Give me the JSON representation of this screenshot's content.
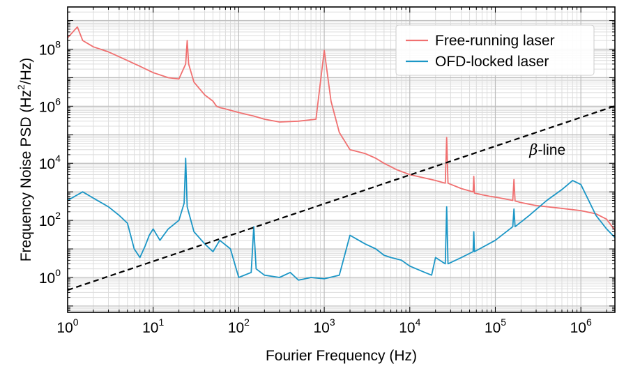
{
  "chart_data": {
    "type": "line",
    "xlabel": "Fourier Frequency (Hz)",
    "ylabel": {
      "pre": "Frequency Noise PSD (Hz",
      "sup": "2",
      "post": "/Hz)"
    },
    "xscale": "log",
    "yscale": "log",
    "xlim": [
      1,
      2500000
    ],
    "ylim": [
      0.06,
      3000000000.0
    ],
    "xticks": [
      {
        "base": "10",
        "exp": "0",
        "value": 1
      },
      {
        "base": "10",
        "exp": "1",
        "value": 10
      },
      {
        "base": "10",
        "exp": "2",
        "value": 100
      },
      {
        "base": "10",
        "exp": "3",
        "value": 1000
      },
      {
        "base": "10",
        "exp": "4",
        "value": 10000
      },
      {
        "base": "10",
        "exp": "5",
        "value": 100000
      },
      {
        "base": "10",
        "exp": "6",
        "value": 1000000
      }
    ],
    "yticks": [
      {
        "base": "10",
        "exp": "0",
        "value": 1
      },
      {
        "base": "10",
        "exp": "2",
        "value": 100
      },
      {
        "base": "10",
        "exp": "4",
        "value": 10000
      },
      {
        "base": "10",
        "exp": "6",
        "value": 1000000
      },
      {
        "base": "10",
        "exp": "8",
        "value": 100000000
      }
    ],
    "grid": true,
    "legend_position": "top-right",
    "annotations": [
      {
        "symbol": "β",
        "text": "-line",
        "x": 250000,
        "y": 20000
      }
    ],
    "series": [
      {
        "name": "Free-running laser",
        "color": "#f07070",
        "x": [
          1,
          1.3,
          1.5,
          2,
          3,
          5,
          7,
          10,
          15,
          20,
          24,
          25,
          26,
          30,
          40,
          50,
          55,
          60,
          70,
          100,
          150,
          200,
          300,
          500,
          800,
          1000,
          1200,
          1500,
          2000,
          3000,
          4000,
          5000,
          7000,
          10000,
          20000,
          26000,
          27000,
          28000,
          40000,
          55000,
          56000,
          57000,
          85000,
          100000,
          160000,
          165000,
          170000,
          200000,
          300000,
          500000,
          1000000,
          1500000,
          2000000,
          2500000
        ],
        "y": [
          250000000.0,
          600000000.0,
          200000000.0,
          120000000.0,
          80000000.0,
          40000000.0,
          25000000.0,
          15000000.0,
          10000000.0,
          9000000.0,
          30000000.0,
          200000000.0,
          30000000.0,
          7000000.0,
          2500000.0,
          1500000.0,
          1000000.0,
          900000.0,
          800000.0,
          600000.0,
          450000.0,
          350000.0,
          280000.0,
          300000.0,
          350000.0,
          90000000.0,
          1500000.0,
          120000.0,
          30000.0,
          22000.0,
          15000.0,
          10000.0,
          6000,
          4000,
          2500,
          2000,
          80000,
          2000,
          1300,
          1000,
          3500,
          900,
          700,
          650,
          500,
          2700,
          480,
          420,
          330,
          280,
          220,
          170,
          110,
          45
        ]
      },
      {
        "name": "OFD-locked laser",
        "color": "#1b96c6",
        "x": [
          1,
          1.5,
          2,
          3,
          4,
          5,
          6,
          7,
          8,
          9,
          10,
          12,
          15,
          20,
          23,
          24,
          25,
          30,
          40,
          50,
          60,
          80,
          100,
          140,
          150,
          160,
          200,
          300,
          400,
          500,
          700,
          1000,
          1500,
          2000,
          3000,
          4000,
          5000,
          6000,
          8000,
          10000,
          15000,
          18000,
          20000,
          26000,
          27000,
          28000,
          40000,
          55000,
          56000,
          57000,
          100000,
          160000,
          165000,
          170000,
          250000,
          400000,
          600000,
          800000,
          1000000,
          1500000,
          2000000,
          2500000
        ],
        "y": [
          500,
          1000,
          600,
          300,
          150,
          80,
          10,
          5,
          12,
          30,
          50,
          20,
          50,
          100,
          400,
          15000,
          300,
          40,
          15,
          8,
          20,
          10,
          1,
          1.5,
          60,
          2,
          1.2,
          1,
          1.5,
          0.8,
          1,
          0.9,
          1.2,
          30,
          15,
          10,
          6,
          5,
          4,
          2.5,
          1.5,
          1.2,
          5,
          3,
          300,
          3,
          5,
          8,
          40,
          8,
          20,
          60,
          250,
          60,
          150,
          500,
          1200,
          2500,
          1800,
          150,
          50,
          25
        ]
      },
      {
        "name": "β-line",
        "color": "#000000",
        "dashed": true,
        "x": [
          1,
          2500000
        ],
        "y": [
          0.36,
          1020000.0
        ]
      }
    ]
  }
}
